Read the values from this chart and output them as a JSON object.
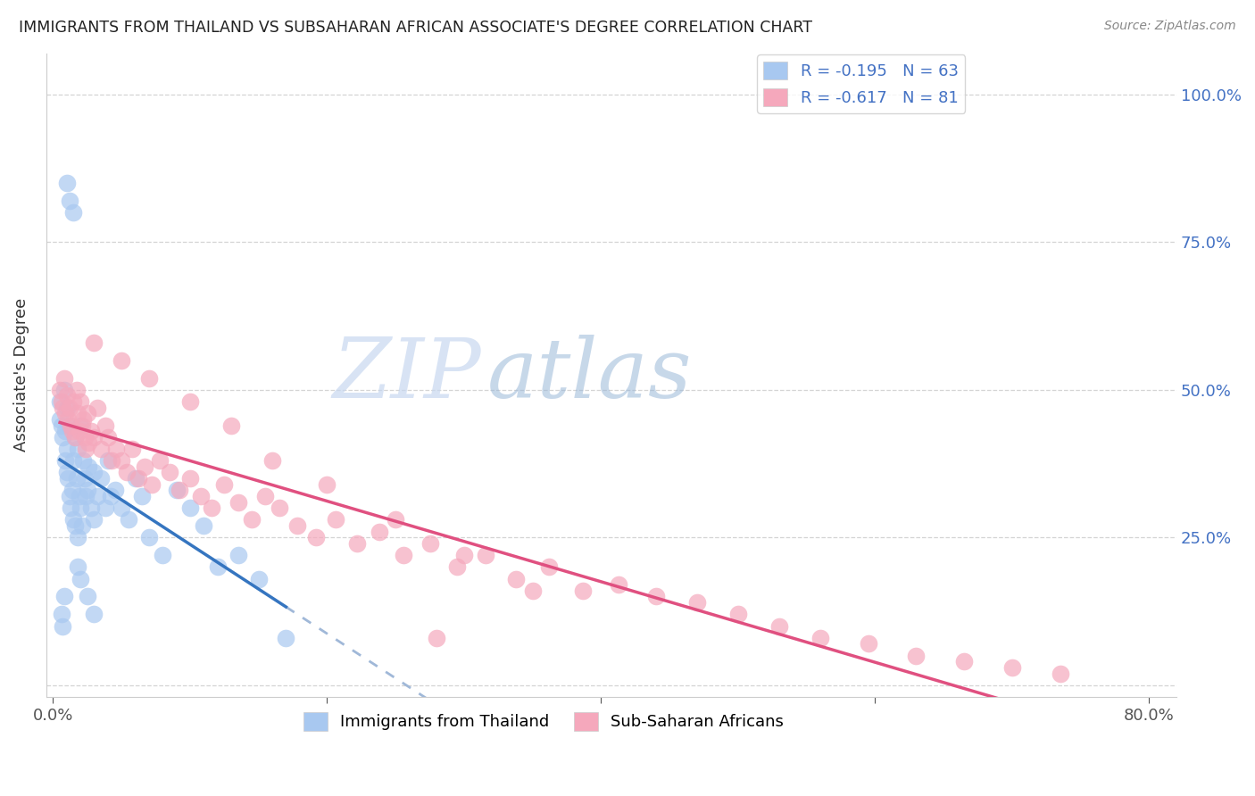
{
  "title": "IMMIGRANTS FROM THAILAND VS SUBSAHARAN AFRICAN ASSOCIATE'S DEGREE CORRELATION CHART",
  "source": "Source: ZipAtlas.com",
  "ylabel": "Associate's Degree",
  "legend_label_thai": "Immigrants from Thailand",
  "legend_label_african": "Sub-Saharan Africans",
  "legend_R_thai": "R = -0.195",
  "legend_N_thai": "N = 63",
  "legend_R_african": "R = -0.617",
  "legend_N_african": "N = 81",
  "thai_color": "#a8c8f0",
  "african_color": "#f5a8bc",
  "thai_line_color": "#3575c0",
  "african_line_color": "#e05080",
  "thai_dashed_color": "#a0b8d8",
  "xlim": [
    -0.005,
    0.82
  ],
  "ylim": [
    -0.02,
    1.07
  ],
  "xticks": [
    0.0,
    0.2,
    0.4,
    0.6,
    0.8
  ],
  "xticklabels": [
    "0.0%",
    "",
    "",
    "",
    "80.0%"
  ],
  "yticks": [
    0.0,
    0.25,
    0.5,
    0.75,
    1.0
  ],
  "right_ytick_labels": [
    "",
    "25.0%",
    "50.0%",
    "75.0%",
    "100.0%"
  ],
  "right_tick_color": "#4472c4",
  "grid_color": "#d0d0d0",
  "background_color": "#ffffff",
  "title_color": "#222222",
  "watermark_zip": "ZIP",
  "watermark_atlas": "atlas",
  "thai_scatter_x": [
    0.005,
    0.005,
    0.006,
    0.007,
    0.008,
    0.009,
    0.009,
    0.01,
    0.01,
    0.01,
    0.011,
    0.012,
    0.012,
    0.013,
    0.014,
    0.015,
    0.015,
    0.016,
    0.016,
    0.017,
    0.018,
    0.018,
    0.019,
    0.02,
    0.02,
    0.021,
    0.022,
    0.023,
    0.024,
    0.025,
    0.026,
    0.028,
    0.03,
    0.03,
    0.032,
    0.035,
    0.038,
    0.04,
    0.042,
    0.045,
    0.05,
    0.055,
    0.06,
    0.065,
    0.07,
    0.08,
    0.09,
    0.1,
    0.11,
    0.12,
    0.135,
    0.15,
    0.17,
    0.01,
    0.012,
    0.015,
    0.008,
    0.006,
    0.007,
    0.02,
    0.025,
    0.03,
    0.018
  ],
  "thai_scatter_y": [
    0.48,
    0.45,
    0.44,
    0.42,
    0.5,
    0.43,
    0.38,
    0.47,
    0.4,
    0.36,
    0.35,
    0.44,
    0.32,
    0.3,
    0.33,
    0.38,
    0.28,
    0.42,
    0.27,
    0.35,
    0.4,
    0.25,
    0.32,
    0.44,
    0.3,
    0.27,
    0.38,
    0.35,
    0.32,
    0.33,
    0.37,
    0.3,
    0.36,
    0.28,
    0.32,
    0.35,
    0.3,
    0.38,
    0.32,
    0.33,
    0.3,
    0.28,
    0.35,
    0.32,
    0.25,
    0.22,
    0.33,
    0.3,
    0.27,
    0.2,
    0.22,
    0.18,
    0.08,
    0.85,
    0.82,
    0.8,
    0.15,
    0.12,
    0.1,
    0.18,
    0.15,
    0.12,
    0.2
  ],
  "african_scatter_x": [
    0.005,
    0.006,
    0.007,
    0.008,
    0.009,
    0.01,
    0.011,
    0.012,
    0.013,
    0.014,
    0.015,
    0.016,
    0.017,
    0.018,
    0.019,
    0.02,
    0.021,
    0.022,
    0.023,
    0.024,
    0.025,
    0.026,
    0.028,
    0.03,
    0.032,
    0.035,
    0.038,
    0.04,
    0.043,
    0.046,
    0.05,
    0.054,
    0.058,
    0.062,
    0.067,
    0.072,
    0.078,
    0.085,
    0.092,
    0.1,
    0.108,
    0.116,
    0.125,
    0.135,
    0.145,
    0.155,
    0.165,
    0.178,
    0.192,
    0.206,
    0.222,
    0.238,
    0.256,
    0.275,
    0.295,
    0.316,
    0.338,
    0.362,
    0.387,
    0.413,
    0.44,
    0.47,
    0.5,
    0.53,
    0.56,
    0.595,
    0.63,
    0.665,
    0.7,
    0.735,
    0.03,
    0.05,
    0.07,
    0.1,
    0.13,
    0.16,
    0.2,
    0.25,
    0.3,
    0.35,
    0.28
  ],
  "african_scatter_y": [
    0.5,
    0.48,
    0.47,
    0.52,
    0.46,
    0.49,
    0.45,
    0.47,
    0.44,
    0.43,
    0.48,
    0.42,
    0.5,
    0.46,
    0.43,
    0.48,
    0.44,
    0.45,
    0.42,
    0.4,
    0.46,
    0.41,
    0.43,
    0.42,
    0.47,
    0.4,
    0.44,
    0.42,
    0.38,
    0.4,
    0.38,
    0.36,
    0.4,
    0.35,
    0.37,
    0.34,
    0.38,
    0.36,
    0.33,
    0.35,
    0.32,
    0.3,
    0.34,
    0.31,
    0.28,
    0.32,
    0.3,
    0.27,
    0.25,
    0.28,
    0.24,
    0.26,
    0.22,
    0.24,
    0.2,
    0.22,
    0.18,
    0.2,
    0.16,
    0.17,
    0.15,
    0.14,
    0.12,
    0.1,
    0.08,
    0.07,
    0.05,
    0.04,
    0.03,
    0.02,
    0.58,
    0.55,
    0.52,
    0.48,
    0.44,
    0.38,
    0.34,
    0.28,
    0.22,
    0.16,
    0.08
  ]
}
